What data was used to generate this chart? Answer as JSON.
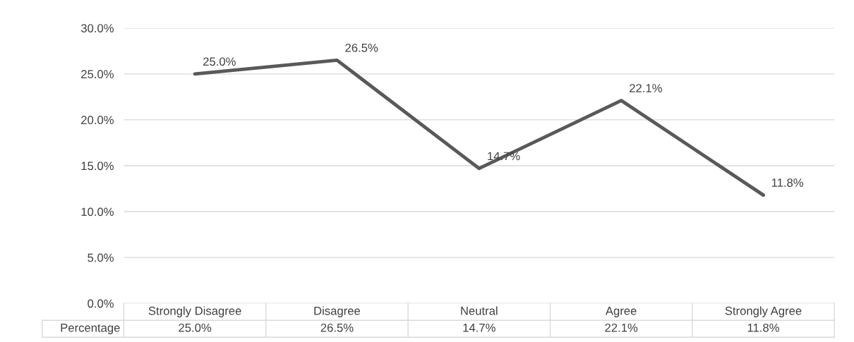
{
  "chart_data": {
    "type": "line",
    "categories": [
      "Strongly Disagree",
      "Disagree",
      "Neutral",
      "Agree",
      "Strongly Agree"
    ],
    "series": [
      {
        "name": "Percentage",
        "color": "#595959",
        "values": [
          25.0,
          26.5,
          14.7,
          22.1,
          11.8
        ],
        "value_labels": [
          "25.0%",
          "26.5%",
          "14.7%",
          "22.1%",
          "11.8%"
        ]
      }
    ],
    "ylim": [
      0,
      30
    ],
    "yticks": [
      {
        "value": 0,
        "label": "0.0%"
      },
      {
        "value": 5,
        "label": "5.0%"
      },
      {
        "value": 10,
        "label": "10.0%"
      },
      {
        "value": 15,
        "label": "15.0%"
      },
      {
        "value": 20,
        "label": "20.0%"
      },
      {
        "value": 25,
        "label": "25.0%"
      },
      {
        "value": 30,
        "label": "30.0%"
      }
    ],
    "grid": "y",
    "marker": "none",
    "line_style": "solid"
  }
}
